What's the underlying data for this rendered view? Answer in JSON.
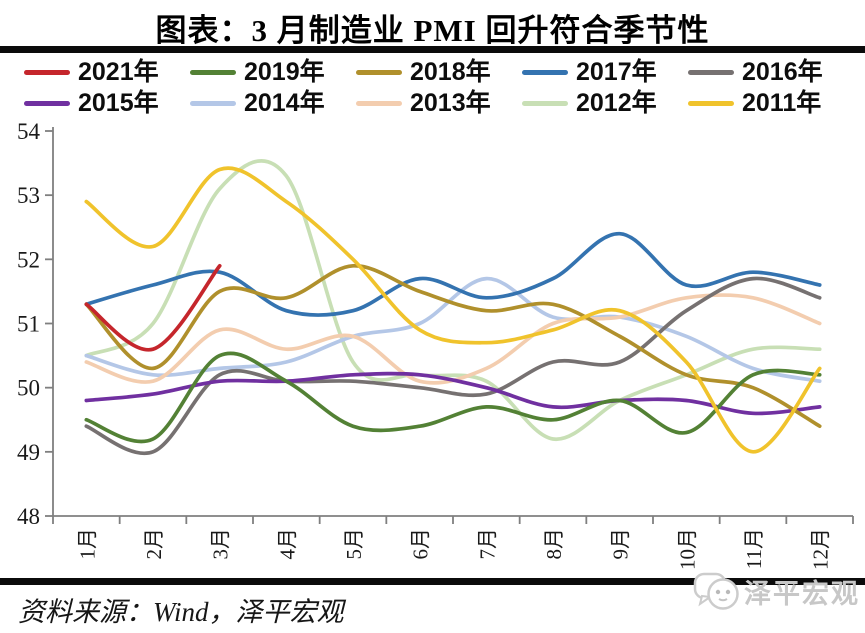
{
  "source": "资料来源：Wind，泽平宏观",
  "brand": {
    "name": "泽平宏观"
  },
  "colors": {
    "rule": "#0b0b0b",
    "axis": "#7f7f7f",
    "tick_label": "#1a1a1a",
    "brand_gray": "#c7c7c7"
  },
  "chart_data": {
    "type": "line",
    "title": "图表：3 月制造业 PMI 回升符合季节性",
    "xlabel": "",
    "ylabel": "",
    "categories": [
      "1月",
      "2月",
      "3月",
      "4月",
      "5月",
      "6月",
      "7月",
      "8月",
      "9月",
      "10月",
      "11月",
      "12月"
    ],
    "y_ticks": [
      48,
      49,
      50,
      51,
      52,
      53,
      54
    ],
    "ylim": [
      48,
      54
    ],
    "grid": false,
    "smooth": true,
    "legend_position": "top",
    "series": [
      {
        "name": "2021年",
        "color": "#c5262c",
        "z": 8,
        "values": [
          51.3,
          50.6,
          51.9
        ]
      },
      {
        "name": "2019年",
        "color": "#538135",
        "z": 7,
        "values": [
          49.5,
          49.2,
          50.5,
          50.1,
          49.4,
          49.4,
          49.7,
          49.5,
          49.8,
          49.3,
          50.2,
          50.2
        ]
      },
      {
        "name": "2018年",
        "color": "#b0902c",
        "z": 6,
        "values": [
          51.3,
          50.3,
          51.5,
          51.4,
          51.9,
          51.5,
          51.2,
          51.3,
          50.8,
          50.2,
          50.0,
          49.4
        ]
      },
      {
        "name": "2017年",
        "color": "#3473b0",
        "z": 5,
        "values": [
          51.3,
          51.6,
          51.8,
          51.2,
          51.2,
          51.7,
          51.4,
          51.7,
          52.4,
          51.6,
          51.8,
          51.6
        ]
      },
      {
        "name": "2016年",
        "color": "#767171",
        "z": 3,
        "values": [
          49.4,
          49.0,
          50.2,
          50.1,
          50.1,
          50.0,
          49.9,
          50.4,
          50.4,
          51.2,
          51.7,
          51.4
        ]
      },
      {
        "name": "2015年",
        "color": "#7030a0",
        "z": 4,
        "values": [
          49.8,
          49.9,
          50.1,
          50.1,
          50.2,
          50.2,
          50.0,
          49.7,
          49.8,
          49.8,
          49.6,
          49.7
        ]
      },
      {
        "name": "2014年",
        "color": "#b4c7e7",
        "z": 1,
        "values": [
          50.5,
          50.2,
          50.3,
          50.4,
          50.8,
          51.0,
          51.7,
          51.1,
          51.1,
          50.8,
          50.3,
          50.1
        ]
      },
      {
        "name": "2013年",
        "color": "#f3cdaf",
        "z": 2,
        "values": [
          50.4,
          50.1,
          50.9,
          50.6,
          50.8,
          50.1,
          50.3,
          51.0,
          51.1,
          51.4,
          51.4,
          51.0
        ]
      },
      {
        "name": "2012年",
        "color": "#c8dfb5",
        "z": 0,
        "values": [
          50.5,
          51.0,
          53.1,
          53.3,
          50.4,
          50.2,
          50.1,
          49.2,
          49.8,
          50.2,
          50.6,
          50.6
        ]
      },
      {
        "name": "2011年",
        "color": "#f0c32c",
        "z": 9,
        "values": [
          52.9,
          52.2,
          53.4,
          52.9,
          52.0,
          50.9,
          50.7,
          50.9,
          51.2,
          50.4,
          49.0,
          50.3
        ]
      }
    ]
  }
}
